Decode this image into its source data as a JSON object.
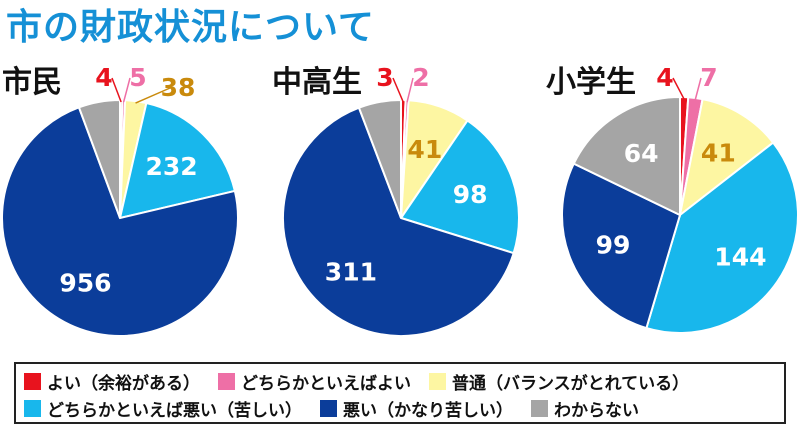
{
  "title": "市の財政状況について",
  "colors": {
    "よい（余裕がある）": "#e8131e",
    "どちらかといえばよい": "#ee6fa6",
    "普通（バランスがとれている）": "#fdf6a2",
    "どちらかといえば悪い（苦しい）": "#18b7ec",
    "悪い（かなり苦しい）": "#0b3d9a",
    "わからない": "#a5a5a5"
  },
  "chart_data": [
    {
      "type": "pie",
      "title": "市民",
      "categories": [
        "よい（余裕がある）",
        "どちらかといえばよい",
        "普通（バランスがとれている）",
        "どちらかといえば悪い（苦しい）",
        "悪い（かなり苦しい）",
        "わからない"
      ],
      "values": [
        4,
        5,
        38,
        232,
        956,
        74
      ]
    },
    {
      "type": "pie",
      "title": "中高生",
      "categories": [
        "よい（余裕がある）",
        "どちらかといえばよい",
        "普通（バランスがとれている）",
        "どちらかといえば悪い（苦しい）",
        "悪い（かなり苦しい）",
        "わからない"
      ],
      "values": [
        3,
        2,
        41,
        98,
        311,
        28
      ]
    },
    {
      "type": "pie",
      "title": "小学生",
      "categories": [
        "よい（余裕がある）",
        "どちらかといえばよい",
        "普通（バランスがとれている）",
        "どちらかといえば悪い（苦しい）",
        "悪い（かなり苦しい）",
        "わからない"
      ],
      "values": [
        4,
        7,
        41,
        144,
        99,
        64
      ]
    }
  ],
  "legend": {
    "rows": [
      [
        "よい（余裕がある）",
        "どちらかといえばよい",
        "普通（バランスがとれている）"
      ],
      [
        "どちらかといえば悪い（苦しい）",
        "悪い（かなり苦しい）",
        "わからない"
      ]
    ]
  }
}
